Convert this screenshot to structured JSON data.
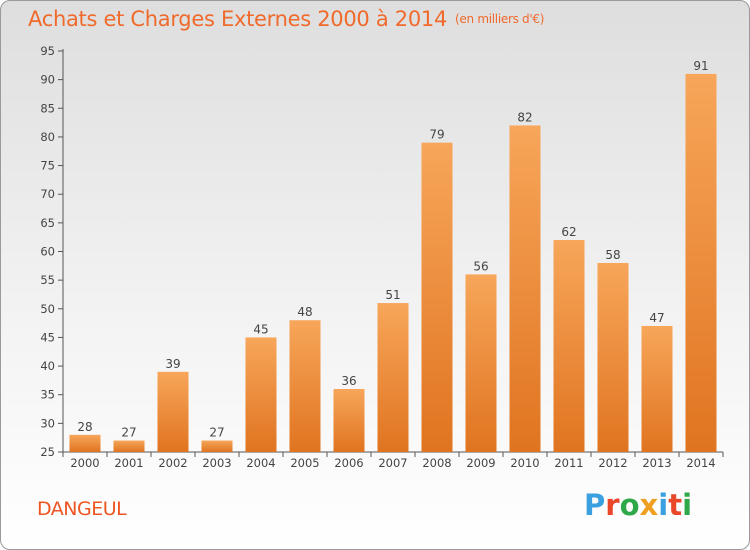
{
  "title": "Achats et Charges Externes 2000 à 2014",
  "unit": "(en milliers d'€)",
  "place": "DANGEUL",
  "logo": {
    "text": "Proxiti",
    "letters": [
      "P",
      "r",
      "o",
      "x",
      "i",
      "t",
      "i"
    ],
    "colors": [
      "#3aa0e0",
      "#e9462a",
      "#2fa84a",
      "#f0a020",
      "#3aa0e0",
      "#e9462a",
      "#2fa84a"
    ]
  },
  "colors": {
    "bar_light": "#f7a65a",
    "bar_dark": "#e07420",
    "accent": "#f06a2c"
  },
  "chart_data": {
    "type": "bar",
    "categories": [
      "2000",
      "2001",
      "2002",
      "2003",
      "2004",
      "2005",
      "2006",
      "2007",
      "2008",
      "2009",
      "2010",
      "2011",
      "2012",
      "2013",
      "2014"
    ],
    "values": [
      28,
      27,
      39,
      27,
      45,
      48,
      36,
      51,
      79,
      56,
      82,
      62,
      58,
      47,
      91
    ],
    "ylim": [
      25,
      95
    ],
    "yticks": [
      25,
      30,
      35,
      40,
      45,
      50,
      55,
      60,
      65,
      70,
      75,
      80,
      85,
      90,
      95
    ],
    "grid": false
  }
}
